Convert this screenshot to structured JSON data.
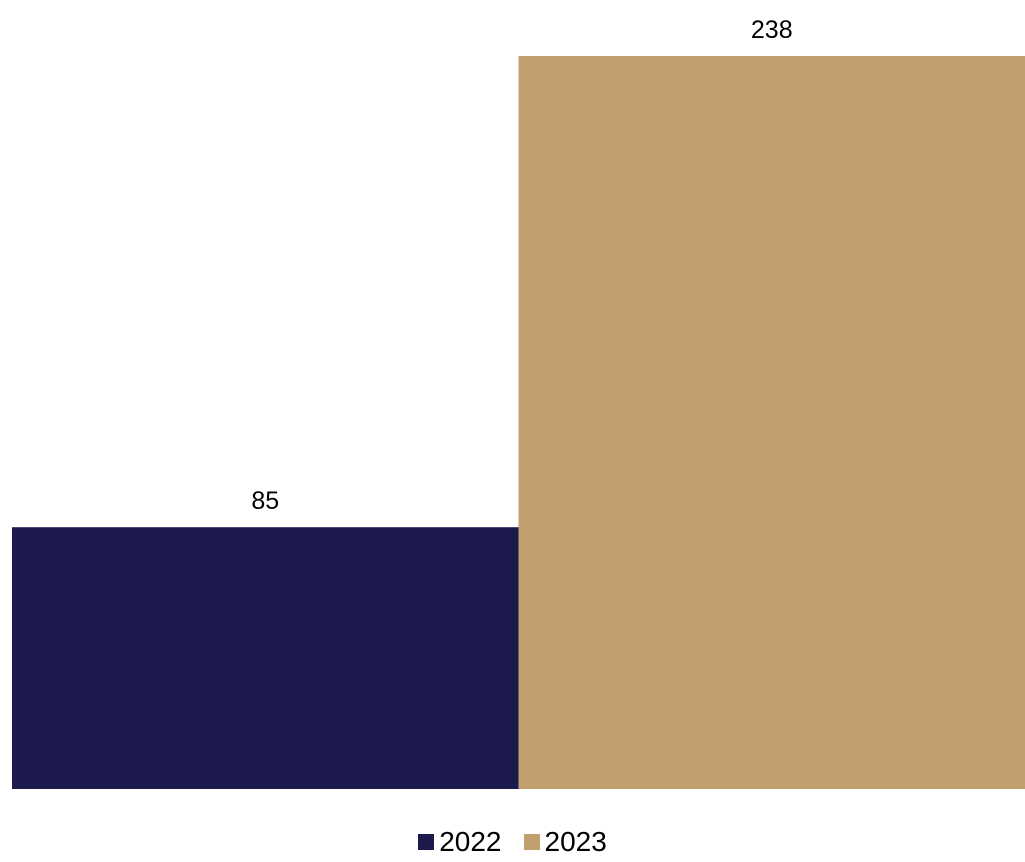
{
  "chart_data": {
    "type": "bar",
    "categories": [
      ""
    ],
    "series": [
      {
        "name": "2022",
        "values": [
          85
        ],
        "color": "#1C1A4D"
      },
      {
        "name": "2023",
        "values": [
          238
        ],
        "color": "#C29F6E"
      }
    ],
    "data_labels": [
      "85",
      "238"
    ],
    "ylim": [
      0,
      238
    ],
    "grid": false,
    "legend": "bottom-center",
    "title": "",
    "xlabel": "",
    "ylabel": ""
  }
}
